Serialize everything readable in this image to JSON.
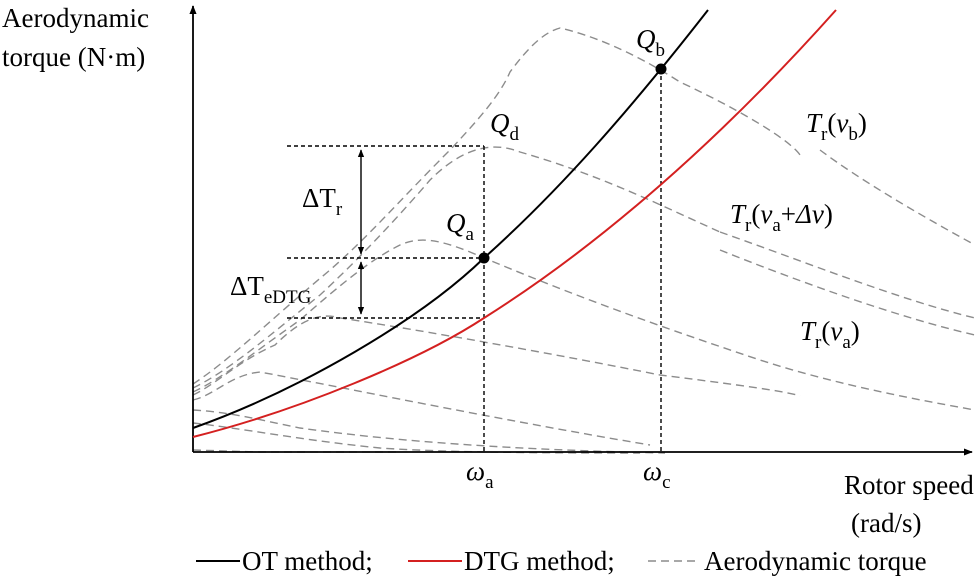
{
  "axes": {
    "y_label_line1": "Aerodynamic",
    "y_label_line2": "torque (N·m)",
    "x_label_line1": "Rotor speed",
    "x_label_line2": "(rad/s)"
  },
  "ticks": {
    "omega_symbol": "ω",
    "omega_a_sub": "a",
    "omega_c_sub": "c"
  },
  "points": {
    "Q": "Q",
    "a": "a",
    "b": "b",
    "d": "d"
  },
  "deltas": {
    "delta_Tr_main": "ΔT",
    "delta_Tr_sub": "r",
    "delta_TeDTG_main": "ΔT",
    "delta_TeDTG_sub": "eDTG"
  },
  "curve_labels": {
    "T": "T",
    "r": "r",
    "vb_open": "(",
    "v": "v",
    "b": "b",
    "close": ")",
    "a": "a",
    "plus": "+",
    "delta_v": "Δv"
  },
  "legend": {
    "ot": "OT method;",
    "dtg": "DTG method;",
    "aero": "Aerodynamic torque"
  },
  "colors": {
    "ot": "#000000",
    "dtg": "#d42020",
    "aero": "#8c8c8c"
  }
}
